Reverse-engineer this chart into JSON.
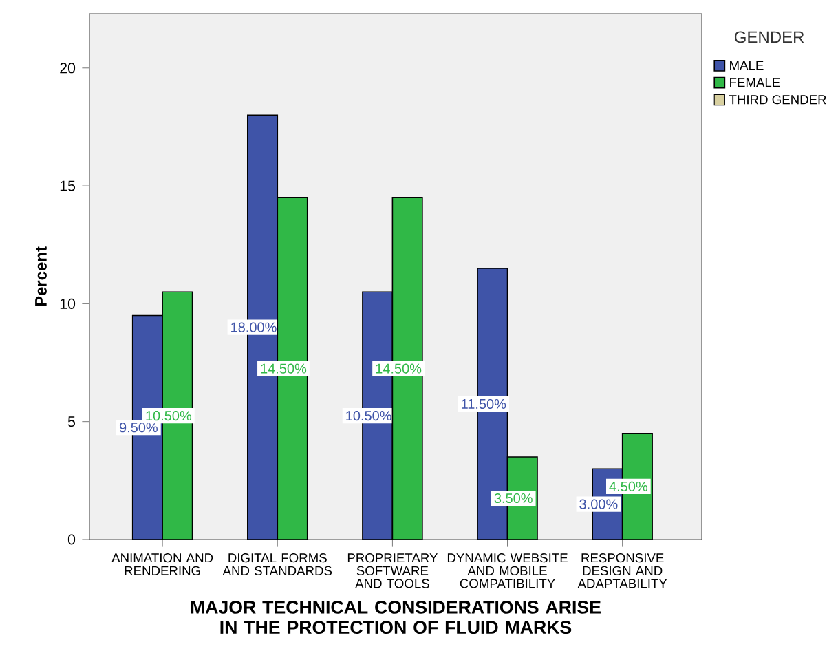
{
  "chart_data": {
    "type": "bar",
    "xlabel": "MAJOR TECHNICAL CONSIDERATIONS ARISE IN THE PROTECTION OF FLUID MARKS",
    "ylabel": "Percent",
    "legend_title": "GENDER",
    "categories": [
      "ANIMATION AND RENDERING",
      "DIGITAL FORMS AND STANDARDS",
      "PROPRIETARY SOFTWARE AND TOOLS",
      "DYNAMIC WEBSITE AND MOBILE COMPATIBILITY",
      "RESPONSIVE DESIGN AND ADAPTABILITY"
    ],
    "series": [
      {
        "name": "MALE",
        "color": "#3f54a8",
        "values": [
          9.5,
          18.0,
          10.5,
          11.5,
          3.0
        ],
        "value_labels": [
          "9.50%",
          "18.00%",
          "10.50%",
          "11.50%",
          "3.00%"
        ]
      },
      {
        "name": "FEMALE",
        "color": "#30b847",
        "values": [
          10.5,
          14.5,
          14.5,
          3.5,
          4.5
        ],
        "value_labels": [
          "10.50%",
          "14.50%",
          "14.50%",
          "3.50%",
          "4.50%"
        ]
      },
      {
        "name": "THIRD GENDER",
        "color": "#d8d0a0",
        "values": [
          null,
          null,
          null,
          null,
          null
        ]
      }
    ],
    "ylim": [
      0,
      22.3
    ],
    "yticks": [
      0,
      5,
      10,
      15,
      20
    ],
    "grid": false,
    "legend": "top right"
  }
}
